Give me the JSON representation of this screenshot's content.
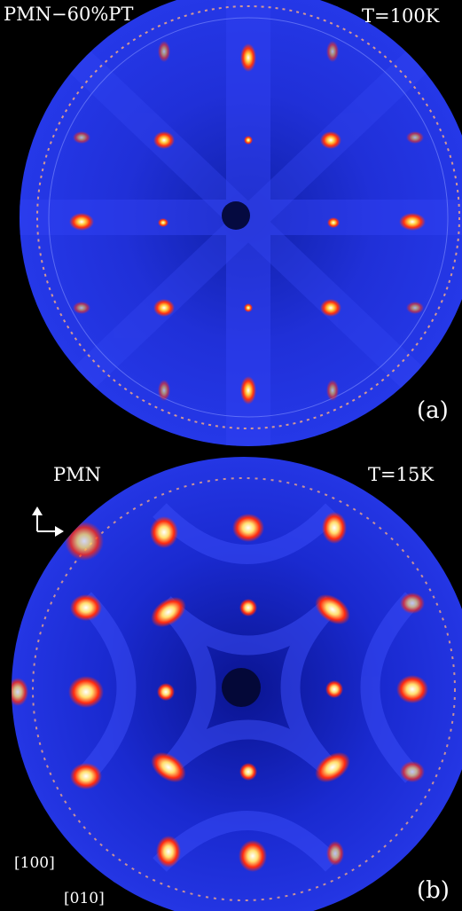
{
  "colors": {
    "background": "#000000",
    "field": "#1a2ad0",
    "field_dark": "#0d1480",
    "hot": "#ff2a10",
    "hotter": "#ffd030",
    "hottest": "#ffffff",
    "text": "#ffffff"
  },
  "panel_a": {
    "sample": "PMN−60%PT",
    "temperature": "T=100K",
    "tag": "(a)"
  },
  "panel_b": {
    "sample": "PMN",
    "temperature": "T=15K",
    "tag": "(b)",
    "axis_vertical": "[100]",
    "axis_horizontal": "[010]"
  }
}
